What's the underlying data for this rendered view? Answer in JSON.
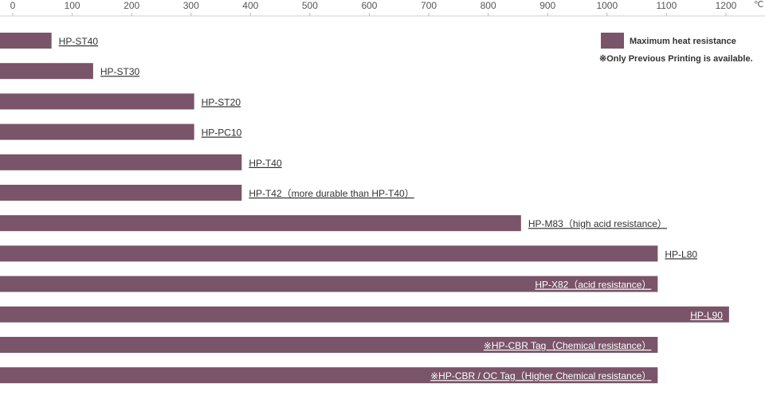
{
  "chart_data": {
    "type": "bar",
    "orientation": "horizontal",
    "unit": "℃",
    "xlim": [
      0,
      1250
    ],
    "ticks": [
      0,
      100,
      200,
      300,
      400,
      500,
      600,
      700,
      800,
      900,
      1000,
      1100,
      1200
    ],
    "bar_color": "#7a5468",
    "categories": [
      "HP-ST40",
      "HP-ST30",
      "HP-ST20",
      "HP-PC10",
      "HP-T40",
      "HP-T42（more durable than HP-T40）",
      "HP-M83（high acid resistance）",
      "HP-L80",
      "HP-X82（acid resistance）",
      "HP-L90",
      "※HP-CBR Tag（Chemical resistance）",
      "※HP-CBR / OC Tag（Higher Chemical resistance）"
    ],
    "series": [
      {
        "name": "Maximum heat resistance",
        "values": [
          80,
          150,
          320,
          320,
          400,
          400,
          870,
          1100,
          1100,
          1220,
          1100,
          1100
        ]
      }
    ],
    "label_inside": [
      false,
      false,
      false,
      false,
      false,
      false,
      false,
      false,
      true,
      true,
      true,
      true
    ],
    "legend": {
      "items": [
        {
          "label": "Maximum heat resistance",
          "color": "#7a5468"
        }
      ],
      "note": "※Only Previous Printing is available."
    }
  }
}
